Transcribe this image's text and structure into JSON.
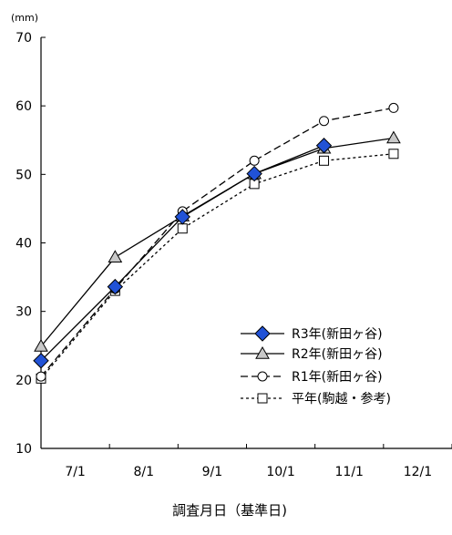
{
  "chart_data": {
    "type": "line",
    "xlabel": "調査月日（基準日)",
    "ylabel": "",
    "y_unit": "(mm)",
    "ylim": [
      10,
      70
    ],
    "yticks": [
      10,
      20,
      30,
      40,
      50,
      60,
      70
    ],
    "x_ticks": [
      "7/1",
      "8/1",
      "9/1",
      "10/1",
      "11/1",
      "12/1"
    ],
    "x_range_days": [
      0,
      183
    ],
    "grid": false,
    "legend_position": "bottom-right",
    "series": [
      {
        "name": "R3年(新田ヶ谷)",
        "color": "#1f4fd8",
        "marker": "diamond",
        "line_style": "solid",
        "x_days": [
          0,
          33,
          63,
          95,
          126
        ],
        "values": [
          22.8,
          33.6,
          43.8,
          50.1,
          54.2
        ]
      },
      {
        "name": "R2年(新田ヶ谷)",
        "color": "#000000",
        "marker": "triangle",
        "line_style": "solid",
        "x_days": [
          0,
          33,
          63,
          95,
          126,
          157
        ],
        "values": [
          24.9,
          37.9,
          43.9,
          50.1,
          53.8,
          55.3
        ]
      },
      {
        "name": "R1年(新田ヶ谷)",
        "color": "#000000",
        "marker": "circle",
        "line_style": "dashed",
        "x_days": [
          0,
          33,
          63,
          95,
          126,
          157
        ],
        "values": [
          20.5,
          33.3,
          44.6,
          52.0,
          57.8,
          59.7
        ]
      },
      {
        "name": "平年(駒越・参考)",
        "color": "#000000",
        "marker": "square",
        "line_style": "dotted",
        "x_days": [
          0,
          33,
          63,
          95,
          126,
          157
        ],
        "values": [
          20.2,
          33.0,
          42.1,
          48.6,
          52.0,
          53.0
        ]
      }
    ]
  }
}
